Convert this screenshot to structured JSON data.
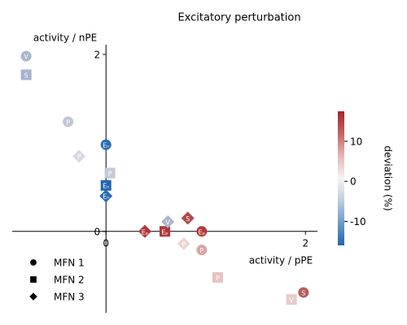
{
  "chart_data": {
    "type": "scatter",
    "title": "Excitatory perturbation",
    "xlabel": "activity / pPE",
    "ylabel": "activity / nPE",
    "xlim": [
      -0.94,
      2.12
    ],
    "ylim": [
      -0.92,
      2.11
    ],
    "xticks": [
      0,
      2
    ],
    "yticks": [
      0,
      2
    ],
    "legend": "lower left",
    "series": [
      {
        "name": "MFN 1",
        "marker": "circle",
        "x": [
          -0.8,
          -0.38,
          0,
          0.96,
          0.96,
          1.98
        ],
        "values": [
          1.98,
          1.24,
          0.98,
          0,
          -0.21,
          -0.69
        ],
        "labels": [
          "V",
          "P",
          "Eₙ",
          "Eₚ",
          "P",
          "S"
        ],
        "colors": [
          "#a9b6cc",
          "#c0c6d6",
          "#2a6bb3",
          "#b03a3a",
          "#d9a5a3",
          "#b85c5c"
        ]
      },
      {
        "name": "MFN 2",
        "marker": "square",
        "x": [
          -0.8,
          0.04,
          0,
          0.59,
          1.12,
          1.86
        ],
        "values": [
          1.77,
          0.66,
          0.52,
          0,
          -0.52,
          -0.77
        ],
        "labels": [
          "S",
          "P",
          "Eₙ",
          "Eₚ",
          "P",
          "V"
        ],
        "colors": [
          "#a7b3cb",
          "#c4c9da",
          "#2466b0",
          "#b2363b",
          "#e6c4c1",
          "#e8cbc8"
        ]
      },
      {
        "name": "MFN 3",
        "marker": "diamond",
        "x": [
          -0.27,
          0,
          0.39,
          0.62,
          0.82,
          0.78
        ],
        "values": [
          0.85,
          0.4,
          0,
          0.11,
          0.15,
          -0.14
        ],
        "labels": [
          "P",
          "Eₙ",
          "Eₚ",
          "V",
          "S",
          "P"
        ],
        "colors": [
          "#d6d8e2",
          "#2a6bb3",
          "#b0363b",
          "#aab6cc",
          "#b04848",
          "#efd5d2"
        ]
      }
    ],
    "colorbar": {
      "label": "deviation (%)",
      "lim": [
        -16,
        17.5
      ],
      "ticks": [
        -10,
        0,
        10
      ],
      "colors": [
        "#2166ac",
        "#6b9bc8",
        "#c0cde0",
        "#f7f3f3",
        "#e3b8b8",
        "#c46364",
        "#a2262f"
      ]
    }
  }
}
